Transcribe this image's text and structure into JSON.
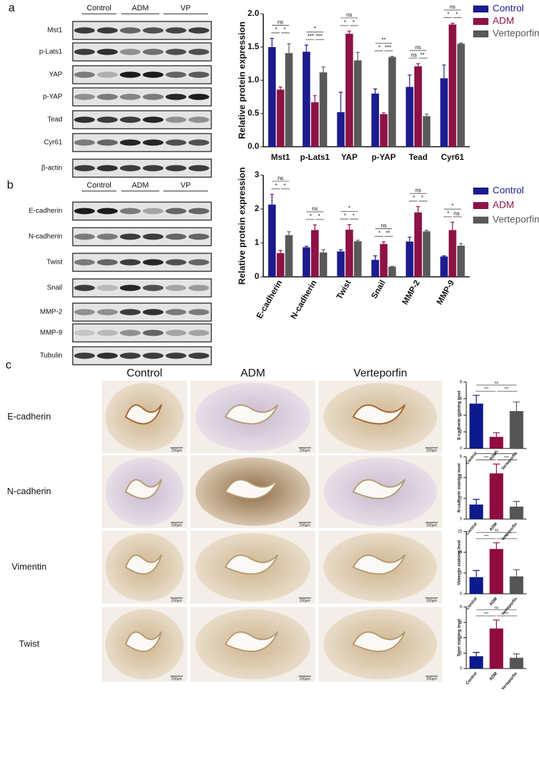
{
  "figure": {
    "panel_labels": [
      "a",
      "b",
      "c"
    ]
  },
  "blots": [
    {
      "groups": [
        "Control",
        "ADM",
        "VP"
      ],
      "rows": [
        "Mst1",
        "p-Lats1",
        "YAP",
        "p-YAP",
        "Tead",
        "Cyr61",
        "β-actin"
      ]
    },
    {
      "groups": [
        "Control",
        "ADM",
        "VP"
      ],
      "rows": [
        "E-cadherin",
        "N-cadherin",
        "Twist",
        "Snail",
        "MMP-2",
        "MMP-9",
        "Tubulin"
      ]
    }
  ],
  "histology": {
    "columns": [
      "Control",
      "ADM",
      "Verteporfin"
    ],
    "rows": [
      "E-cadherin",
      "N-cadherin",
      "Vimentin",
      "Twist"
    ],
    "scale_bar": "200μm"
  },
  "chart_data": [
    {
      "type": "bar",
      "y_label": "Relative protein expression",
      "categories": [
        "Mst1",
        "p-Lats1",
        "YAP",
        "p-YAP",
        "Tead",
        "Cyr61"
      ],
      "series": [
        {
          "name": "Control",
          "color": "#1c1c8f",
          "values": [
            1.5,
            1.43,
            0.52,
            0.8,
            0.9,
            1.03
          ],
          "errors": [
            0.13,
            0.1,
            0.3,
            0.07,
            0.18,
            0.2
          ]
        },
        {
          "name": "ADM",
          "color": "#8e1245",
          "values": [
            0.86,
            0.67,
            1.7,
            0.49,
            1.21,
            1.84
          ],
          "errors": [
            0.04,
            0.1,
            0.04,
            0.02,
            0.04,
            0.02
          ]
        },
        {
          "name": "Verteporfin",
          "color": "#595959",
          "values": [
            1.41,
            1.12,
            1.3,
            1.35,
            0.46,
            1.55
          ],
          "errors": [
            0.14,
            0.08,
            0.12,
            0.01,
            0.03,
            0.01
          ]
        }
      ],
      "significance": [
        [
          "ns",
          "*",
          "*"
        ],
        [
          "*",
          "***",
          "***"
        ],
        [
          "ns",
          "*",
          "*"
        ],
        [
          "**",
          "*",
          "***"
        ],
        [
          "ns",
          "ns",
          "**"
        ],
        [
          "ns",
          "*",
          "*"
        ]
      ],
      "ylim": [
        0,
        2
      ],
      "yticks": [
        {
          "value": 0,
          "label": "0.0"
        },
        0.5,
        {
          "value": 1,
          "label": "1.0"
        },
        1.5,
        {
          "value": 2,
          "label": "2.0"
        }
      ],
      "legend": "right"
    },
    {
      "type": "bar",
      "y_label": "Relative protein expression",
      "categories": [
        "E-cadherin",
        "N-cadherin",
        "Twist",
        "Snail",
        "MMP-2",
        "MMP-9"
      ],
      "series": [
        {
          "name": "Control",
          "color": "#1c1c8f",
          "values": [
            2.13,
            0.87,
            0.75,
            0.5,
            1.04,
            0.6
          ],
          "errors": [
            0.3,
            0.03,
            0.05,
            0.12,
            0.13,
            0.02
          ]
        },
        {
          "name": "ADM",
          "color": "#8e1245",
          "values": [
            0.7,
            1.38,
            1.39,
            0.97,
            1.9,
            1.38
          ],
          "errors": [
            0.08,
            0.15,
            0.15,
            0.06,
            0.17,
            0.23
          ]
        },
        {
          "name": "Verteporfin",
          "color": "#595959",
          "values": [
            1.23,
            0.72,
            1.05,
            0.3,
            1.34,
            0.92
          ],
          "errors": [
            0.1,
            0.08,
            0.03,
            0.01,
            0.03,
            0.06
          ]
        }
      ],
      "significance": [
        [
          "ns",
          "*",
          "*"
        ],
        [
          "ns",
          "*",
          "*"
        ],
        [
          "*",
          "*",
          "*"
        ],
        [
          "ns",
          "*",
          "**"
        ],
        [
          "ns",
          "*",
          "*"
        ],
        [
          "*",
          "*",
          "ns"
        ]
      ],
      "ylim": [
        0,
        3
      ],
      "yticks": [
        0,
        1,
        2,
        3
      ],
      "legend": "right"
    },
    {
      "type": "bar",
      "y_label": "E-cadherin staining level",
      "categories": [
        "Control",
        "ADM",
        "Verteporfin"
      ],
      "colors": [
        "#0c1a8c",
        "#8e0c40",
        "#555555"
      ],
      "values": [
        5.4,
        1.4,
        4.5
      ],
      "errors": [
        1.0,
        0.5,
        1.1
      ],
      "significance": [
        "ns",
        "***",
        "***"
      ],
      "ylim": [
        0,
        8
      ],
      "yticks": [
        0,
        2,
        4,
        6,
        8
      ]
    },
    {
      "type": "bar",
      "y_label": "N-cadherin staining level",
      "categories": [
        "Control",
        "ADM",
        "Verteporfin"
      ],
      "colors": [
        "#0c1a8c",
        "#8e0c40",
        "#555555"
      ],
      "values": [
        1.4,
        4.4,
        1.2
      ],
      "errors": [
        0.5,
        0.9,
        0.5
      ],
      "significance": [
        "ns",
        "***",
        "***"
      ],
      "ylim": [
        0,
        6
      ],
      "yticks": [
        0,
        2,
        4,
        6
      ]
    },
    {
      "type": "bar",
      "y_label": "Vimentin staining level",
      "categories": [
        "Control",
        "ADM",
        "Verteporfin"
      ],
      "colors": [
        "#0c1a8c",
        "#8e0c40",
        "#555555"
      ],
      "values": [
        4.0,
        10.8,
        4.2
      ],
      "errors": [
        1.6,
        1.5,
        1.6
      ],
      "significance": [
        "ns",
        "***",
        "***"
      ],
      "ylim": [
        0,
        15
      ],
      "yticks": [
        0,
        5,
        10,
        15
      ]
    },
    {
      "type": "bar",
      "y_label": "Twist staining level",
      "categories": [
        "Control",
        "ADM",
        "Verteporfin"
      ],
      "colors": [
        "#0c1a8c",
        "#8e0c40",
        "#555555"
      ],
      "values": [
        1.6,
        5.2,
        1.4
      ],
      "errors": [
        0.5,
        1.1,
        0.5
      ],
      "significance": [
        "ns",
        "***",
        "***"
      ],
      "ylim": [
        0,
        8
      ],
      "yticks": [
        0,
        2,
        4,
        6,
        8
      ]
    }
  ]
}
